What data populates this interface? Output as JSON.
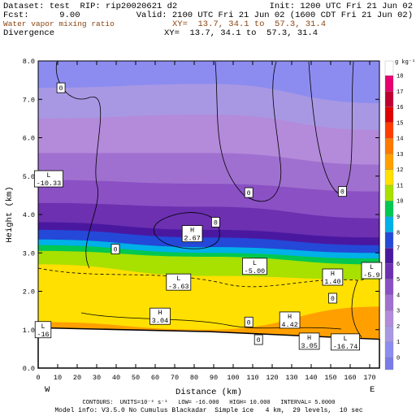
{
  "chart_data": {
    "type": "cross-section",
    "info": {
      "dataset": "Dataset: test  RIP: rip20020621 d2",
      "init": "Init: 1200 UTC Fri 21 Jun 02",
      "fcst": "Fcst:      9.00",
      "valid": "Valid: 2100 UTC Fri 21 Jun 02 (1600 CDT Fri 21 Jun 02)",
      "xy_fill": "XY=  13.7, 34.1 to  57.3, 31.4",
      "xy_contour": "XY=  13.7, 34.1 to  57.3, 31.4",
      "contours": "CONTOURS:  UNITS=10⁻⁶ s⁻¹   LOW= -16.000   HIGH= 10.000   INTERVAL= 5.0000",
      "model": "Model info: V3.5.0 No Cumulus Blackadar  Simple ice   4 km,  29 levels,  10 sec"
    },
    "title": "Water vapor mixing ratio",
    "subtitle": "Divergence",
    "xlabel": "Distance (km)",
    "ylabel": "Height (km)",
    "west": "W",
    "east": "E",
    "xlim": [
      0,
      175
    ],
    "ylim": [
      0,
      8
    ],
    "xticks": [
      0,
      10,
      20,
      30,
      40,
      50,
      60,
      70,
      80,
      90,
      100,
      110,
      120,
      130,
      140,
      150,
      160,
      170
    ],
    "yticks": [
      {
        "value": 0,
        "label": "0.0"
      },
      {
        "value": 1,
        "label": "1.0"
      },
      {
        "value": 2,
        "label": "2.0"
      },
      {
        "value": 3,
        "label": "3.0"
      },
      {
        "value": 4,
        "label": "4.0"
      },
      {
        "value": 5,
        "label": "5.0"
      },
      {
        "value": 6,
        "label": "6.0"
      },
      {
        "value": 7,
        "label": "7.0"
      },
      {
        "value": 8,
        "label": "8.0"
      }
    ],
    "colorbar": {
      "unit": "g kg⁻¹",
      "levels": [
        0,
        1,
        2,
        3,
        4,
        5,
        6,
        7,
        8,
        9,
        10,
        11,
        12,
        13,
        14,
        15,
        16,
        17,
        18
      ],
      "colors": [
        "#7a7ae8",
        "#8c8cf0",
        "#a898e4",
        "#b48ada",
        "#a070d0",
        "#8a50c4",
        "#6c30b0",
        "#4a18a0",
        "#2448d8",
        "#00b0e8",
        "#00c850",
        "#a8e000",
        "#ffe000",
        "#ffa000",
        "#ff7800",
        "#ff3c00",
        "#e00000",
        "#c00030",
        "#e80070",
        "#ffffff"
      ]
    },
    "isolines": {
      "x": [
        0,
        87.5,
        175
      ],
      "lines": [
        {
          "level": 1,
          "heights": [
            7.3,
            7.4,
            6.9
          ]
        },
        {
          "level": 2,
          "heights": [
            6.5,
            6.6,
            6.2
          ]
        },
        {
          "level": 3,
          "heights": [
            5.6,
            5.6,
            5.3
          ]
        },
        {
          "level": 4,
          "heights": [
            4.9,
            4.8,
            4.6
          ]
        },
        {
          "level": 5,
          "heights": [
            4.3,
            4.2,
            3.9
          ]
        },
        {
          "level": 6,
          "heights": [
            3.8,
            3.6,
            3.4
          ]
        },
        {
          "level": 7,
          "heights": [
            3.6,
            3.4,
            3.2
          ]
        },
        {
          "level": 8,
          "heights": [
            3.35,
            3.15,
            3.0
          ]
        },
        {
          "level": 9,
          "heights": [
            3.2,
            3.0,
            2.85
          ]
        },
        {
          "level": 10,
          "heights": [
            3.05,
            2.9,
            2.7
          ]
        },
        {
          "level": 11,
          "heights": [
            2.7,
            2.4,
            2.3
          ]
        },
        {
          "level": 12,
          "heights": [
            1.2,
            1.0,
            1.6
          ]
        }
      ]
    },
    "terrain": {
      "x": [
        0,
        87.5,
        175
      ],
      "heights": [
        1.05,
        0.95,
        0.75
      ]
    },
    "annotations": [
      {
        "text": "0",
        "x": 11.7,
        "y": 7.3
      },
      {
        "text": "L",
        "label": "-10.33",
        "x": 5.4,
        "y": 4.93
      },
      {
        "text": "0",
        "x": 108,
        "y": 4.57
      },
      {
        "text": "0",
        "x": 156,
        "y": 4.6
      },
      {
        "text": "0",
        "x": 91,
        "y": 3.8
      },
      {
        "text": "H",
        "label": "2.67",
        "x": 79,
        "y": 3.5
      },
      {
        "text": "0",
        "x": 39.6,
        "y": 3.1
      },
      {
        "text": "L",
        "label": "-5.00",
        "x": 111,
        "y": 2.65
      },
      {
        "text": "H",
        "label": "1.40",
        "x": 151,
        "y": 2.37
      },
      {
        "text": "L",
        "label": "-5.9",
        "x": 171,
        "y": 2.54
      },
      {
        "text": "L",
        "label": "-3.63",
        "x": 72,
        "y": 2.24
      },
      {
        "text": "0",
        "x": 151,
        "y": 1.82
      },
      {
        "text": "H",
        "label": "3.04",
        "x": 62.5,
        "y": 1.35
      },
      {
        "text": "0",
        "x": 108,
        "y": 1.2
      },
      {
        "text": "H",
        "label": "4.42",
        "x": 129,
        "y": 1.25
      },
      {
        "text": "L",
        "label": "-16",
        "x": 2.5,
        "y": 1.0
      },
      {
        "text": "0",
        "x": 113,
        "y": 0.74
      },
      {
        "text": "H",
        "label": "3.05",
        "x": 139,
        "y": 0.7
      },
      {
        "text": "L",
        "label": "-16.74",
        "x": 157.5,
        "y": 0.68
      }
    ]
  }
}
